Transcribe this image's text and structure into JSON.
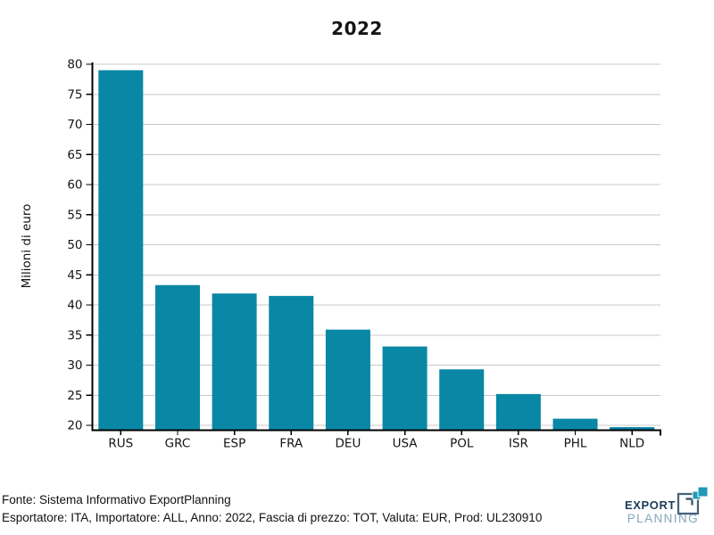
{
  "title": "2022",
  "chart_data": {
    "type": "bar",
    "title": "2022",
    "categories": [
      "RUS",
      "GRC",
      "ESP",
      "FRA",
      "DEU",
      "USA",
      "POL",
      "ISR",
      "PHL",
      "NLD"
    ],
    "values": [
      79,
      43.3,
      41.9,
      41.5,
      35.9,
      33.1,
      29.3,
      25.2,
      21.1,
      19.7
    ],
    "xlabel": "",
    "ylabel": "Milioni di euro",
    "ylim": [
      19.2,
      80.3
    ],
    "yticks": [
      20,
      25,
      30,
      35,
      40,
      45,
      50,
      55,
      60,
      65,
      70,
      75,
      80
    ],
    "grid": "horizontal",
    "legend": "none",
    "bar_color": "#0a87a5"
  },
  "colors": {
    "bar": "#0a87a5",
    "grid": "#c9c9c9",
    "axis": "#000000",
    "text": "#141414"
  },
  "footer": {
    "source_line": "Fonte: Sistema Informativo ExportPlanning",
    "params_line": "Esportatore: ITA, Importatore: ALL, Anno: 2022, Fascia di prezzo: TOT, Valuta: EUR, Prod: UL230910"
  },
  "logo": {
    "line1": "EXPORT",
    "line2": "PLANNING",
    "navy": "#1d3c5a",
    "outline": "#44617a",
    "light_blue": "#84a7ba",
    "teal": "#1f9ab6",
    "icon": "export-planning-logo-icon"
  }
}
